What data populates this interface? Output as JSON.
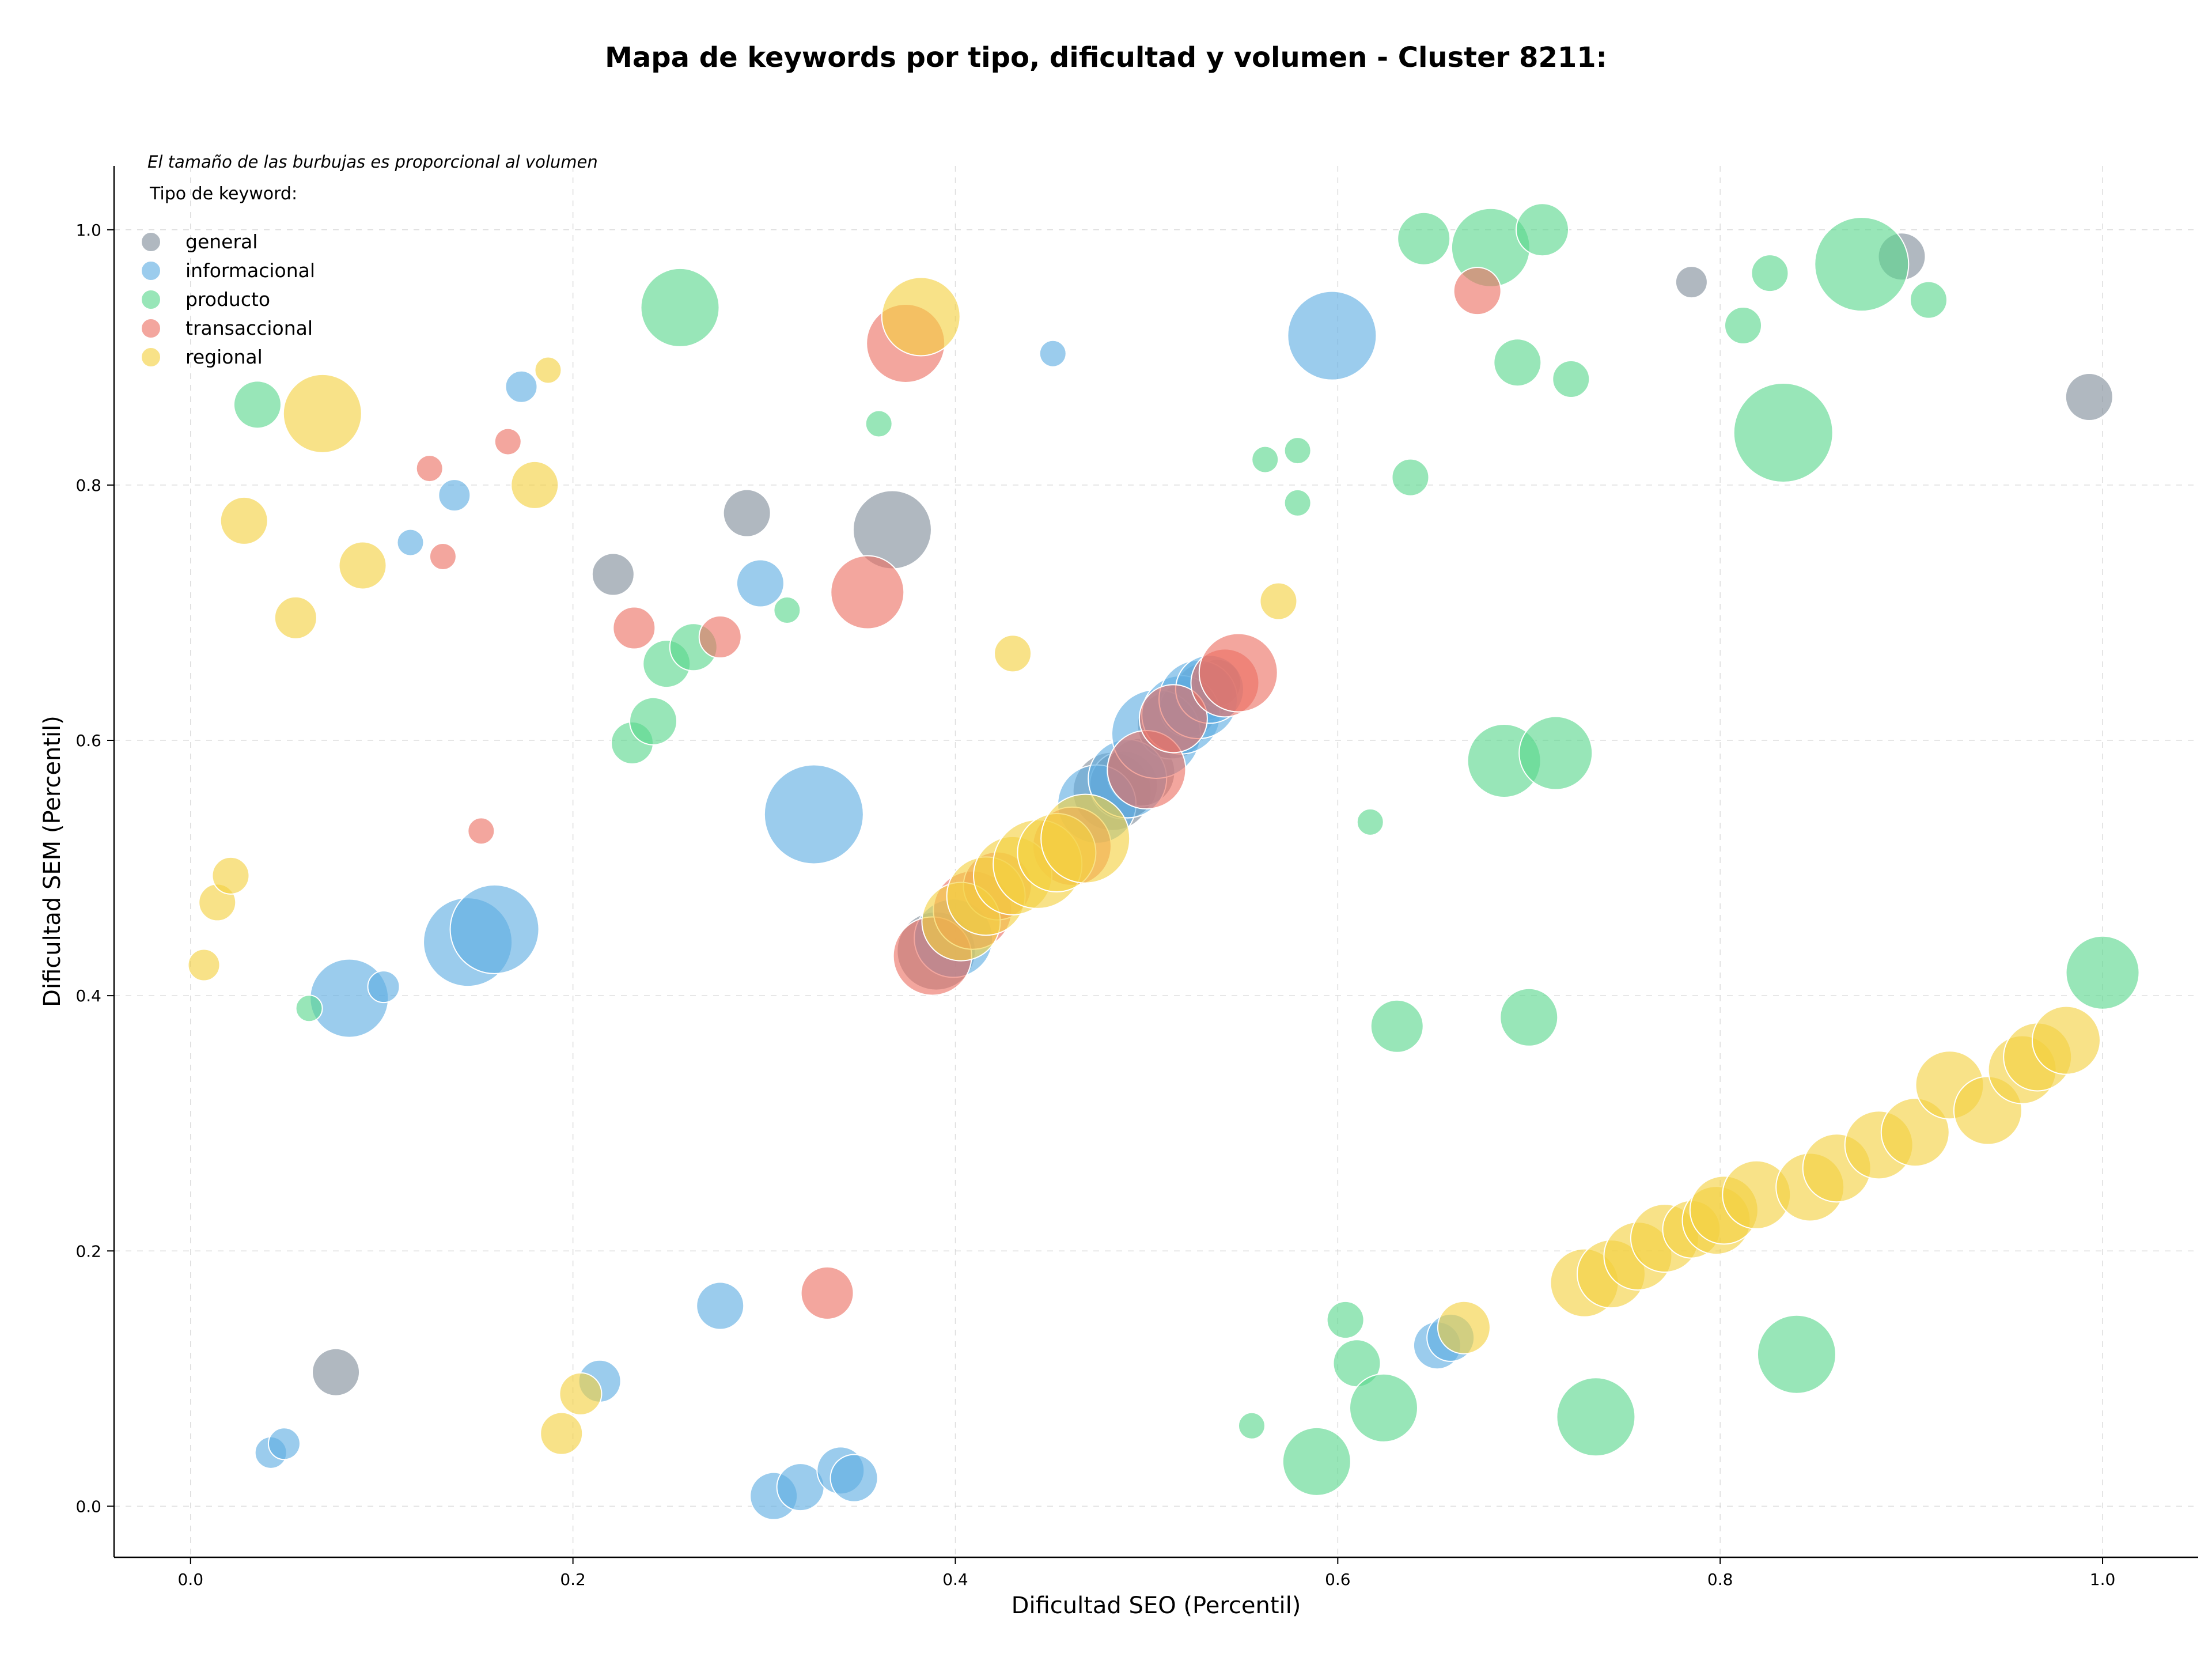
{
  "chart_data": {
    "type": "scatter",
    "title": "Mapa de keywords por tipo, dificultad y volumen - Cluster 8211:",
    "xlabel": "Dificultad SEO (Percentil)",
    "ylabel": "Dificultad SEM (Percentil)",
    "annotation": "El tamaño de las burbujas es proporcional al volumen",
    "legend_title": "Tipo de keyword:",
    "legend_position": "top-left",
    "grid": true,
    "xlim": [
      -0.04,
      1.05
    ],
    "ylim": [
      -0.04,
      1.05
    ],
    "x_ticks": [
      "0.0",
      "0.2",
      "0.4",
      "0.6",
      "0.8",
      "1.0"
    ],
    "y_ticks": [
      "0.0",
      "0.2",
      "0.4",
      "0.6",
      "0.8",
      "1.0"
    ],
    "size_scale": {
      "volume_min": 1,
      "volume_max": 10
    },
    "series": [
      {
        "name": "general",
        "color": "#7f8c9a",
        "points": [
          {
            "x": 0.076,
            "y": 0.105,
            "volume": 4
          },
          {
            "x": 0.221,
            "y": 0.73,
            "volume": 3.5
          },
          {
            "x": 0.291,
            "y": 0.778,
            "volume": 4
          },
          {
            "x": 0.367,
            "y": 0.765,
            "volume": 7
          },
          {
            "x": 0.785,
            "y": 0.959,
            "volume": 2.5
          },
          {
            "x": 0.895,
            "y": 0.979,
            "volume": 4
          },
          {
            "x": 0.993,
            "y": 0.869,
            "volume": 4
          },
          {
            "x": 0.39,
            "y": 0.435,
            "volume": 7
          },
          {
            "x": 0.482,
            "y": 0.56,
            "volume": 7
          },
          {
            "x": 0.488,
            "y": 0.565,
            "volume": 6
          },
          {
            "x": 0.497,
            "y": 0.575,
            "volume": 6
          },
          {
            "x": 0.513,
            "y": 0.612,
            "volume": 6
          },
          {
            "x": 0.522,
            "y": 0.625,
            "volume": 5
          },
          {
            "x": 0.53,
            "y": 0.638,
            "volume": 5
          },
          {
            "x": 0.537,
            "y": 0.645,
            "volume": 4
          }
        ]
      },
      {
        "name": "informacional",
        "color": "#5dade2",
        "points": [
          {
            "x": 0.042,
            "y": 0.042,
            "volume": 2.5
          },
          {
            "x": 0.049,
            "y": 0.049,
            "volume": 2.5
          },
          {
            "x": 0.083,
            "y": 0.398,
            "volume": 7
          },
          {
            "x": 0.101,
            "y": 0.407,
            "volume": 2.5
          },
          {
            "x": 0.115,
            "y": 0.755,
            "volume": 2
          },
          {
            "x": 0.138,
            "y": 0.792,
            "volume": 2.5
          },
          {
            "x": 0.145,
            "y": 0.442,
            "volume": 8
          },
          {
            "x": 0.159,
            "y": 0.452,
            "volume": 8
          },
          {
            "x": 0.173,
            "y": 0.877,
            "volume": 2.5
          },
          {
            "x": 0.214,
            "y": 0.098,
            "volume": 3.5
          },
          {
            "x": 0.277,
            "y": 0.157,
            "volume": 4
          },
          {
            "x": 0.298,
            "y": 0.723,
            "volume": 4
          },
          {
            "x": 0.305,
            "y": 0.008,
            "volume": 4
          },
          {
            "x": 0.319,
            "y": 0.015,
            "volume": 4
          },
          {
            "x": 0.326,
            "y": 0.542,
            "volume": 9
          },
          {
            "x": 0.34,
            "y": 0.028,
            "volume": 4
          },
          {
            "x": 0.347,
            "y": 0.022,
            "volume": 4
          },
          {
            "x": 0.451,
            "y": 0.903,
            "volume": 2
          },
          {
            "x": 0.597,
            "y": 0.917,
            "volume": 8
          },
          {
            "x": 0.652,
            "y": 0.126,
            "volume": 4
          },
          {
            "x": 0.659,
            "y": 0.132,
            "volume": 4
          },
          {
            "x": 0.399,
            "y": 0.445,
            "volume": 7
          },
          {
            "x": 0.474,
            "y": 0.55,
            "volume": 7
          },
          {
            "x": 0.49,
            "y": 0.57,
            "volume": 7
          },
          {
            "x": 0.505,
            "y": 0.605,
            "volume": 8
          },
          {
            "x": 0.518,
            "y": 0.62,
            "volume": 7
          },
          {
            "x": 0.527,
            "y": 0.632,
            "volume": 7
          },
          {
            "x": 0.533,
            "y": 0.64,
            "volume": 6
          }
        ]
      },
      {
        "name": "producto",
        "color": "#58d68d",
        "points": [
          {
            "x": 0.035,
            "y": 0.863,
            "volume": 4
          },
          {
            "x": 0.062,
            "y": 0.39,
            "volume": 2
          },
          {
            "x": 0.231,
            "y": 0.598,
            "volume": 3.5
          },
          {
            "x": 0.242,
            "y": 0.615,
            "volume": 4
          },
          {
            "x": 0.249,
            "y": 0.66,
            "volume": 4
          },
          {
            "x": 0.256,
            "y": 0.939,
            "volume": 7
          },
          {
            "x": 0.263,
            "y": 0.673,
            "volume": 4
          },
          {
            "x": 0.312,
            "y": 0.702,
            "volume": 2
          },
          {
            "x": 0.36,
            "y": 0.848,
            "volume": 2
          },
          {
            "x": 0.555,
            "y": 0.063,
            "volume": 2
          },
          {
            "x": 0.562,
            "y": 0.82,
            "volume": 2
          },
          {
            "x": 0.579,
            "y": 0.827,
            "volume": 2
          },
          {
            "x": 0.579,
            "y": 0.786,
            "volume": 2
          },
          {
            "x": 0.589,
            "y": 0.035,
            "volume": 6
          },
          {
            "x": 0.604,
            "y": 0.146,
            "volume": 3
          },
          {
            "x": 0.61,
            "y": 0.112,
            "volume": 4
          },
          {
            "x": 0.617,
            "y": 0.536,
            "volume": 2
          },
          {
            "x": 0.624,
            "y": 0.077,
            "volume": 6
          },
          {
            "x": 0.631,
            "y": 0.376,
            "volume": 4.5
          },
          {
            "x": 0.638,
            "y": 0.806,
            "volume": 3
          },
          {
            "x": 0.645,
            "y": 0.993,
            "volume": 4.5
          },
          {
            "x": 0.68,
            "y": 0.986,
            "volume": 7
          },
          {
            "x": 0.687,
            "y": 0.584,
            "volume": 6.5
          },
          {
            "x": 0.694,
            "y": 0.896,
            "volume": 4
          },
          {
            "x": 0.7,
            "y": 0.383,
            "volume": 5
          },
          {
            "x": 0.707,
            "y": 1.0,
            "volume": 4.5
          },
          {
            "x": 0.714,
            "y": 0.59,
            "volume": 6.5
          },
          {
            "x": 0.722,
            "y": 0.883,
            "volume": 3
          },
          {
            "x": 0.735,
            "y": 0.07,
            "volume": 7
          },
          {
            "x": 0.812,
            "y": 0.925,
            "volume": 3
          },
          {
            "x": 0.826,
            "y": 0.966,
            "volume": 3
          },
          {
            "x": 0.833,
            "y": 0.841,
            "volume": 9
          },
          {
            "x": 0.84,
            "y": 0.119,
            "volume": 7
          },
          {
            "x": 0.874,
            "y": 0.973,
            "volume": 8.5
          },
          {
            "x": 0.909,
            "y": 0.945,
            "volume": 3
          },
          {
            "x": 1.0,
            "y": 0.418,
            "volume": 6.5
          }
        ]
      },
      {
        "name": "transaccional",
        "color": "#ec7063",
        "points": [
          {
            "x": 0.125,
            "y": 0.813,
            "volume": 2
          },
          {
            "x": 0.132,
            "y": 0.744,
            "volume": 2
          },
          {
            "x": 0.152,
            "y": 0.529,
            "volume": 2
          },
          {
            "x": 0.166,
            "y": 0.834,
            "volume": 2
          },
          {
            "x": 0.232,
            "y": 0.688,
            "volume": 3.5
          },
          {
            "x": 0.277,
            "y": 0.681,
            "volume": 3.5
          },
          {
            "x": 0.333,
            "y": 0.167,
            "volume": 4.5
          },
          {
            "x": 0.354,
            "y": 0.716,
            "volume": 6.5
          },
          {
            "x": 0.374,
            "y": 0.911,
            "volume": 7
          },
          {
            "x": 0.673,
            "y": 0.952,
            "volume": 4
          },
          {
            "x": 0.388,
            "y": 0.431,
            "volume": 7
          },
          {
            "x": 0.409,
            "y": 0.467,
            "volume": 7
          },
          {
            "x": 0.422,
            "y": 0.486,
            "volume": 6
          },
          {
            "x": 0.461,
            "y": 0.517,
            "volume": 7
          },
          {
            "x": 0.5,
            "y": 0.577,
            "volume": 7
          },
          {
            "x": 0.514,
            "y": 0.617,
            "volume": 6
          },
          {
            "x": 0.541,
            "y": 0.645,
            "volume": 6
          },
          {
            "x": 0.548,
            "y": 0.653,
            "volume": 7
          }
        ]
      },
      {
        "name": "regional",
        "color": "#f4d03f",
        "points": [
          {
            "x": 0.007,
            "y": 0.424,
            "volume": 2.5
          },
          {
            "x": 0.014,
            "y": 0.473,
            "volume": 3
          },
          {
            "x": 0.021,
            "y": 0.494,
            "volume": 3
          },
          {
            "x": 0.028,
            "y": 0.772,
            "volume": 4
          },
          {
            "x": 0.055,
            "y": 0.696,
            "volume": 3.5
          },
          {
            "x": 0.069,
            "y": 0.856,
            "volume": 7
          },
          {
            "x": 0.09,
            "y": 0.737,
            "volume": 4
          },
          {
            "x": 0.18,
            "y": 0.8,
            "volume": 4
          },
          {
            "x": 0.187,
            "y": 0.89,
            "volume": 2
          },
          {
            "x": 0.194,
            "y": 0.057,
            "volume": 3.5
          },
          {
            "x": 0.204,
            "y": 0.088,
            "volume": 3.5
          },
          {
            "x": 0.382,
            "y": 0.932,
            "volume": 7
          },
          {
            "x": 0.43,
            "y": 0.668,
            "volume": 3
          },
          {
            "x": 0.569,
            "y": 0.709,
            "volume": 3
          },
          {
            "x": 0.666,
            "y": 0.14,
            "volume": 4.5
          },
          {
            "x": 0.403,
            "y": 0.458,
            "volume": 7
          },
          {
            "x": 0.416,
            "y": 0.478,
            "volume": 7
          },
          {
            "x": 0.43,
            "y": 0.494,
            "volume": 7
          },
          {
            "x": 0.443,
            "y": 0.503,
            "volume": 8
          },
          {
            "x": 0.453,
            "y": 0.512,
            "volume": 7
          },
          {
            "x": 0.468,
            "y": 0.523,
            "volume": 8
          },
          {
            "x": 0.729,
            "y": 0.175,
            "volume": 6
          },
          {
            "x": 0.743,
            "y": 0.182,
            "volume": 6
          },
          {
            "x": 0.757,
            "y": 0.196,
            "volume": 6
          },
          {
            "x": 0.771,
            "y": 0.21,
            "volume": 6
          },
          {
            "x": 0.785,
            "y": 0.217,
            "volume": 5
          },
          {
            "x": 0.798,
            "y": 0.224,
            "volume": 6
          },
          {
            "x": 0.802,
            "y": 0.232,
            "volume": 6
          },
          {
            "x": 0.819,
            "y": 0.244,
            "volume": 6
          },
          {
            "x": 0.847,
            "y": 0.25,
            "volume": 6
          },
          {
            "x": 0.861,
            "y": 0.265,
            "volume": 6
          },
          {
            "x": 0.883,
            "y": 0.283,
            "volume": 6
          },
          {
            "x": 0.902,
            "y": 0.293,
            "volume": 6
          },
          {
            "x": 0.92,
            "y": 0.33,
            "volume": 6
          },
          {
            "x": 0.94,
            "y": 0.31,
            "volume": 6
          },
          {
            "x": 0.958,
            "y": 0.342,
            "volume": 6
          },
          {
            "x": 0.966,
            "y": 0.352,
            "volume": 6
          },
          {
            "x": 0.981,
            "y": 0.365,
            "volume": 6
          }
        ]
      }
    ]
  }
}
